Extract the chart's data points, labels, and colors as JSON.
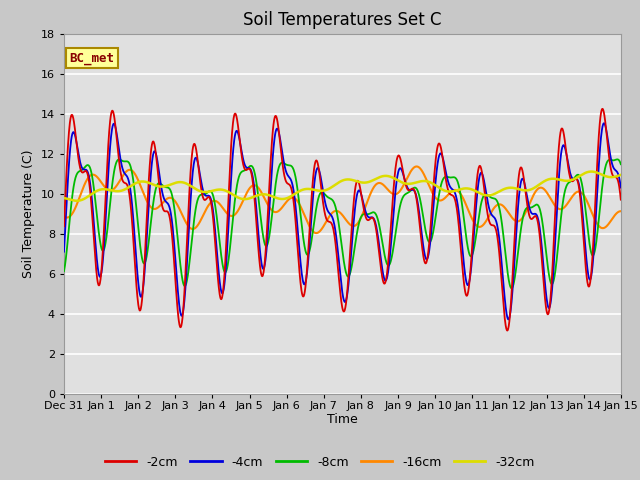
{
  "title": "Soil Temperatures Set C",
  "xlabel": "Time",
  "ylabel": "Soil Temperature (C)",
  "ylim": [
    0,
    18
  ],
  "yticks": [
    0,
    2,
    4,
    6,
    8,
    10,
    12,
    14,
    16,
    18
  ],
  "xlim": [
    0,
    15
  ],
  "xtick_labels": [
    "Dec 31",
    "Jan 1",
    "Jan 2",
    "Jan 3",
    "Jan 4",
    "Jan 5",
    "Jan 6",
    "Jan 7",
    "Jan 8",
    "Jan 9",
    "Jan 10",
    "Jan 11",
    "Jan 12",
    "Jan 13",
    "Jan 14",
    "Jan 15"
  ],
  "legend_label": "BC_met",
  "series_labels": [
    "-2cm",
    "-4cm",
    "-8cm",
    "-16cm",
    "-32cm"
  ],
  "series_colors": [
    "#dd0000",
    "#0000dd",
    "#00bb00",
    "#ff8800",
    "#dddd00"
  ],
  "series_linewidths": [
    1.5,
    1.5,
    1.5,
    1.5,
    1.5
  ],
  "plot_bg": "#e0e0e0",
  "grid_color": "#ffffff",
  "annotation_bg": "#ffff99",
  "annotation_border": "#aa8800",
  "annotation_text_color": "#880000",
  "annotation_fontsize": 9,
  "title_fontsize": 12,
  "label_fontsize": 9,
  "tick_fontsize": 8,
  "legend_fontsize": 9
}
